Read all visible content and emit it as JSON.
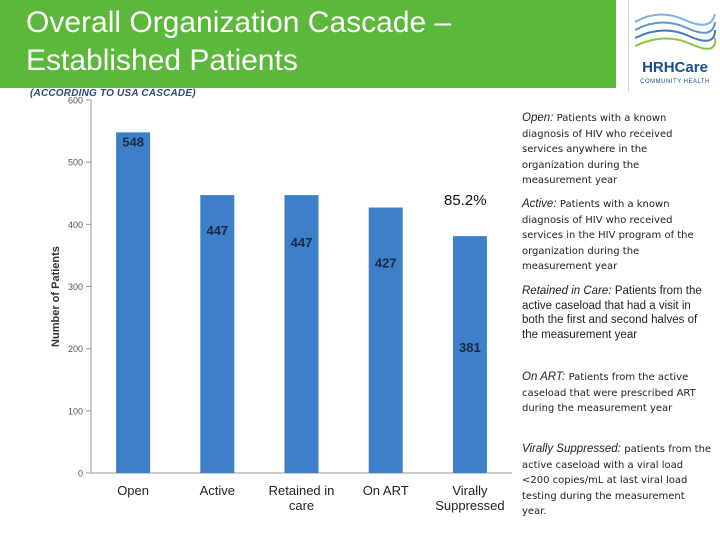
{
  "slide": {
    "title_line1": "Overall Organization Cascade –",
    "title_line2": "Established Patients",
    "subtitle": "(ACCORDING TO USA CASCADE)",
    "logo": {
      "name": "HRHCare",
      "tagline": "COMMUNITY HEALTH"
    },
    "colors": {
      "title_bar": "#5cb83a",
      "bar": "#3d7fc9",
      "logo_blue": "#1a4e8c"
    }
  },
  "annotation": "85.2%",
  "definitions": [
    {
      "term": "Open:",
      "text": "Patients with a known diagnosis of HIV who received services anywhere in the organization during the measurement year"
    },
    {
      "term": "Active:",
      "text": "Patients with a known diagnosis of HIV who received services in the HIV program of the organization during the measurement year"
    },
    {
      "term": "Retained in Care:",
      "text": "Patients from the active caseload that had a visit in both the first and second halves of the measurement year"
    },
    {
      "term": "On ART:",
      "text": "Patients from the active caseload that were prescribed ART during the measurement year"
    },
    {
      "term": "Virally Suppressed:",
      "text": "patients from the active caseload with a viral load <200 copies/mL at last viral load testing during the measurement year."
    }
  ],
  "chart_data": {
    "type": "bar",
    "categories": [
      "Open",
      "Active",
      "Retained in care",
      "On ART",
      "Virally Suppressed"
    ],
    "values": [
      548,
      447,
      447,
      427,
      381
    ],
    "ylabel": "Number of Patients",
    "xlabel": "",
    "ylim": [
      0,
      600
    ],
    "yticks": [
      0,
      100,
      200,
      300,
      400,
      500,
      600
    ],
    "grid": false
  }
}
